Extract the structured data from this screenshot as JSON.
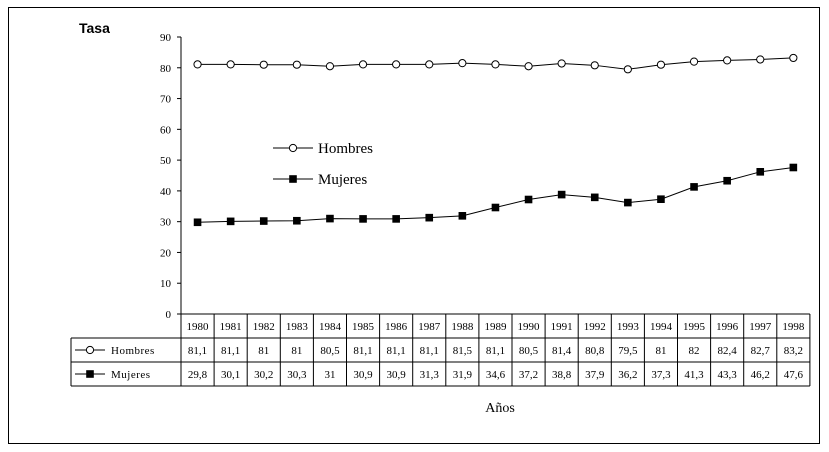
{
  "chart_data": {
    "type": "line",
    "title": "",
    "ylabel": "Tasa",
    "xlabel": "Años",
    "ylim": [
      0,
      90
    ],
    "yticks": [
      "0",
      "10",
      "20",
      "30",
      "40",
      "50",
      "60",
      "70",
      "80",
      "90"
    ],
    "categories": [
      "1980",
      "1981",
      "1982",
      "1983",
      "1984",
      "1985",
      "1986",
      "1987",
      "1988",
      "1989",
      "1990",
      "1991",
      "1992",
      "1993",
      "1994",
      "1995",
      "1996",
      "1997",
      "1998"
    ],
    "legend_position": "center-left",
    "grid": false,
    "series": [
      {
        "name": "Hombres",
        "marker": "open-circle",
        "values": [
          81.1,
          81.1,
          81,
          81,
          80.5,
          81.1,
          81.1,
          81.1,
          81.5,
          81.1,
          80.5,
          81.4,
          80.8,
          79.5,
          81,
          82,
          82.4,
          82.7,
          83.2
        ],
        "labels": [
          "81,1",
          "81,1",
          "81",
          "81",
          "80,5",
          "81,1",
          "81,1",
          "81,1",
          "81,5",
          "81,1",
          "80,5",
          "81,4",
          "80,8",
          "79,5",
          "81",
          "82",
          "82,4",
          "82,7",
          "83,2"
        ]
      },
      {
        "name": "Mujeres",
        "marker": "filled-square",
        "values": [
          29.8,
          30.1,
          30.2,
          30.3,
          31,
          30.9,
          30.9,
          31.3,
          31.9,
          34.6,
          37.2,
          38.8,
          37.9,
          36.2,
          37.3,
          41.3,
          43.3,
          46.2,
          47.6
        ],
        "labels": [
          "29,8",
          "30,1",
          "30,2",
          "30,3",
          "31",
          "30,9",
          "30,9",
          "31,3",
          "31,9",
          "34,6",
          "37,2",
          "38,8",
          "37,9",
          "36,2",
          "37,3",
          "41,3",
          "43,3",
          "46,2",
          "47,6"
        ]
      }
    ]
  }
}
